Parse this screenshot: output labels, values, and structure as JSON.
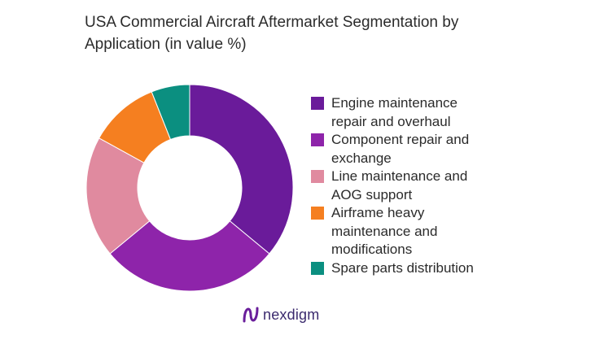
{
  "title_lines": [
    "USA Commercial Aircraft Aftermarket Segmentation by",
    "Application (in value %)"
  ],
  "logo": {
    "text": "nexdigm",
    "icon": "nexdigm-logo-icon",
    "color": "#6a1e9b"
  },
  "chart_data": {
    "type": "pie",
    "variant": "donut",
    "title": "USA Commercial Aircraft Aftermarket Segmentation by Application (in value %)",
    "legend_position": "right",
    "slices": [
      {
        "label": "Engine maintenance repair and overhaul",
        "label_lines": [
          "Engine maintenance",
          "repair and overhaul"
        ],
        "value": 36,
        "color": "#6a1b9a"
      },
      {
        "label": "Component repair and exchange",
        "label_lines": [
          "Component repair and",
          "exchange"
        ],
        "value": 28,
        "color": "#8e24aa"
      },
      {
        "label": "Line maintenance and AOG support",
        "label_lines": [
          "Line maintenance and",
          "AOG support"
        ],
        "value": 19,
        "color": "#e08a9f"
      },
      {
        "label": "Airframe heavy maintenance and modifications",
        "label_lines": [
          "Airframe heavy",
          "maintenance and",
          "modifications"
        ],
        "value": 11,
        "color": "#f57f20"
      },
      {
        "label": "Spare parts distribution",
        "label_lines": [
          "Spare parts distribution"
        ],
        "value": 6,
        "color": "#0b8f80"
      }
    ]
  }
}
